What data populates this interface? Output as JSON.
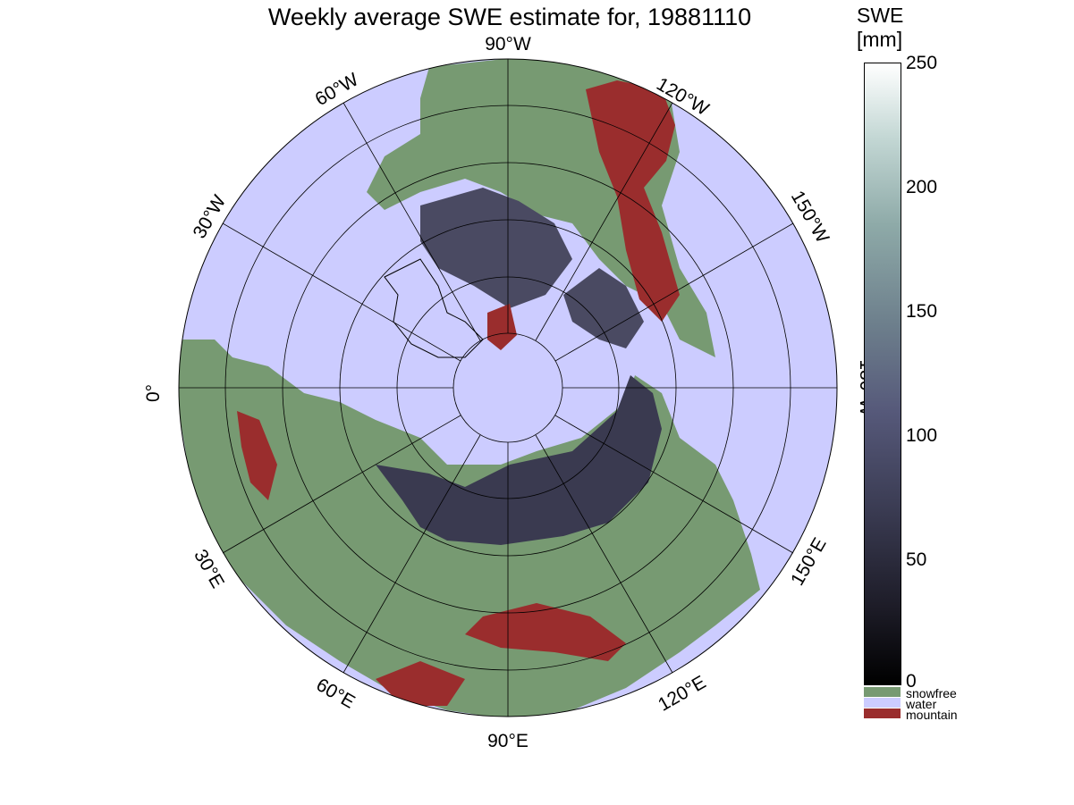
{
  "title": "Weekly average SWE estimate for, 19881110",
  "colorbar": {
    "label_line1": "SWE",
    "label_line2": "[mm]",
    "ticks": [
      "250",
      "200",
      "150",
      "100",
      "50",
      "0"
    ],
    "categories": [
      {
        "label": "snowfree",
        "color": "#779a72"
      },
      {
        "label": "water",
        "color": "#ccccff"
      },
      {
        "label": "mountain",
        "color": "#9a2d2d"
      }
    ]
  },
  "longitude_labels": {
    "w90": "90°W",
    "w60": "60°W",
    "w120": "120°W",
    "w30": "30°W",
    "w150": "150°W",
    "lon0": "0°",
    "w180": "180°W",
    "e30": "30°E",
    "e150": "150°E",
    "e60": "60°E",
    "e120": "120°E",
    "e90": "90°E"
  },
  "colors": {
    "water": "#ccccff",
    "snowfree": "#779a72",
    "mountain": "#9a2d2d",
    "snow_dark": "#2a2a36",
    "snow_mid": "#4a4a62"
  }
}
